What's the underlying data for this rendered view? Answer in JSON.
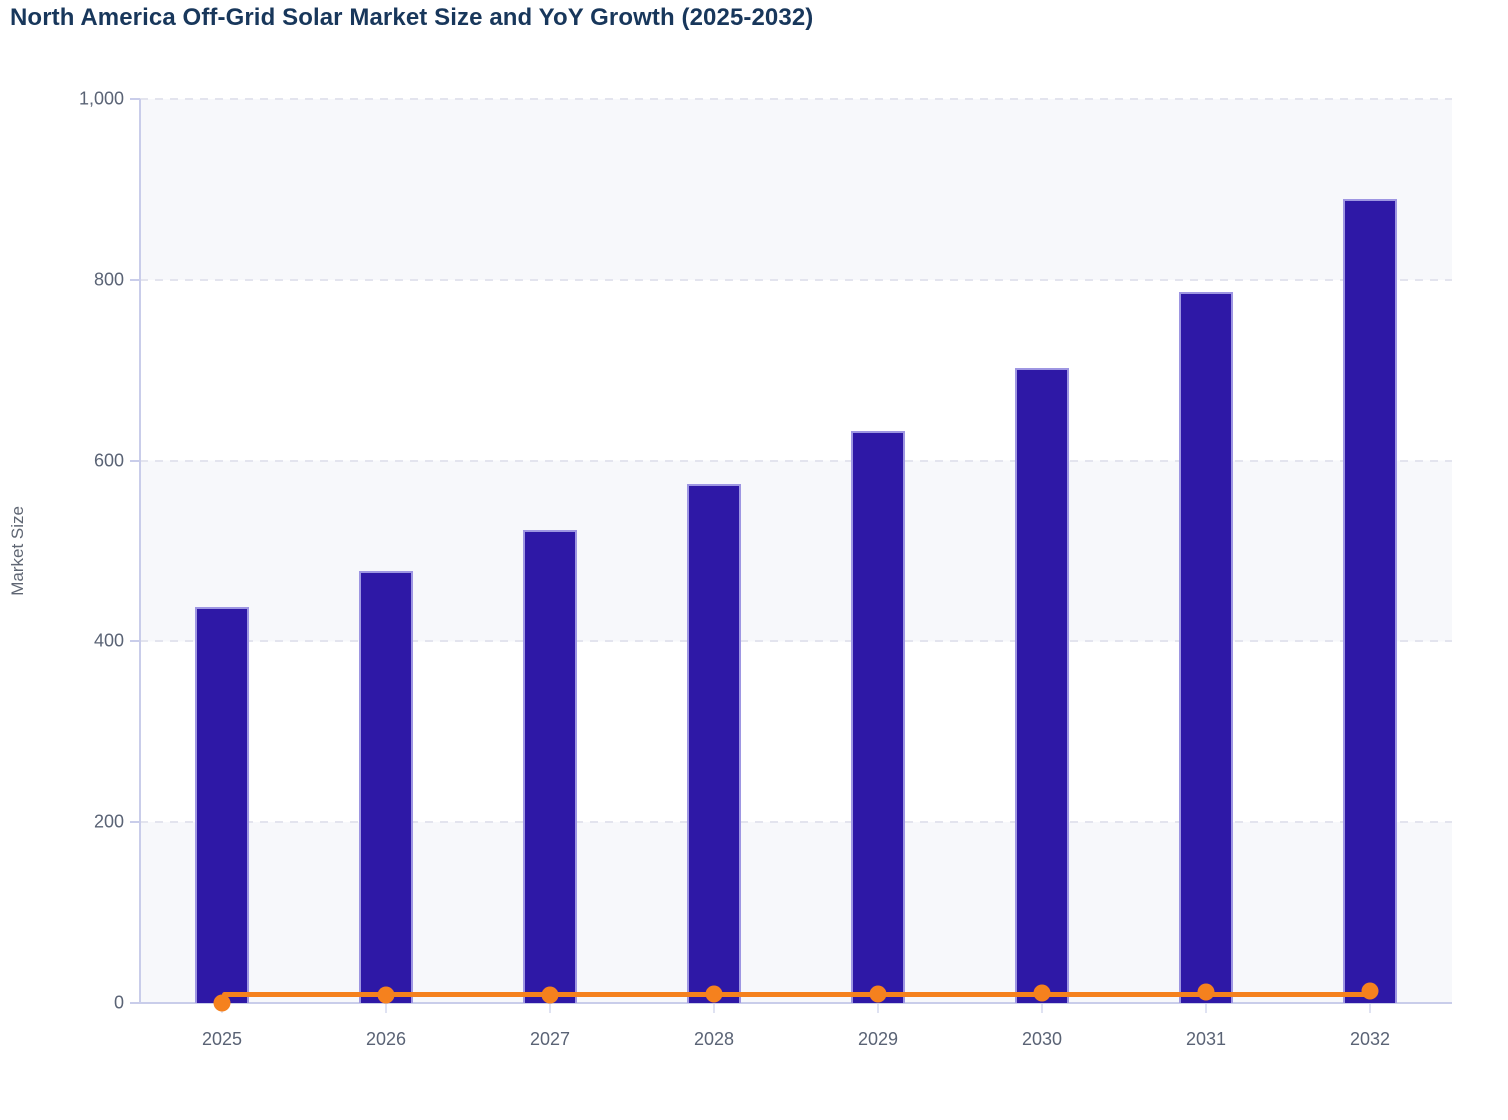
{
  "title": "North America Off-Grid Solar Market Size and YoY Growth (2025-2032)",
  "chart_data": {
    "type": "bar",
    "combo": "bar + line",
    "title": "North America Off-Grid Solar Market Size and YoY Growth (2025-2032)",
    "categories": [
      "2025",
      "2026",
      "2027",
      "2028",
      "2029",
      "2030",
      "2031",
      "2032"
    ],
    "series": [
      {
        "name": "Market Size",
        "type": "bar",
        "values": [
          438,
          478,
          523,
          574,
          633,
          703,
          786,
          889
        ]
      },
      {
        "name": "YoY Growth",
        "type": "line",
        "values": [
          0,
          9.1,
          9.4,
          9.8,
          10.3,
          11.1,
          11.8,
          13.1
        ],
        "note": "plotted on the shared 0-1000 axis, so the line hugs the zero baseline with a flat orange line and circular markers at each year"
      }
    ],
    "xlabel": "",
    "ylabel": "Market Size",
    "ylim": [
      0,
      1000
    ],
    "yticks": [
      {
        "value": 0,
        "label": "0"
      },
      {
        "value": 200,
        "label": "200"
      },
      {
        "value": 400,
        "label": "400"
      },
      {
        "value": 600,
        "label": "600"
      },
      {
        "value": 800,
        "label": "800"
      },
      {
        "value": 1000,
        "label": "1,000"
      }
    ],
    "grid": "horizontal dashed gridlines at each y tick",
    "legend_position": "none",
    "plot_background": "alternating horizontal stripes between gridlines"
  },
  "colors": {
    "background": "#ffffff",
    "title": "#18375b",
    "bar_fill": "#2e18a6",
    "bar_stroke": "#9e96e2",
    "line": "#f5811e",
    "grid": "#e3e4ee",
    "axis": "#c9cdea",
    "band": "#f7f8fb",
    "tick_label": "#5a6375",
    "axis_title": "#5f6673"
  }
}
